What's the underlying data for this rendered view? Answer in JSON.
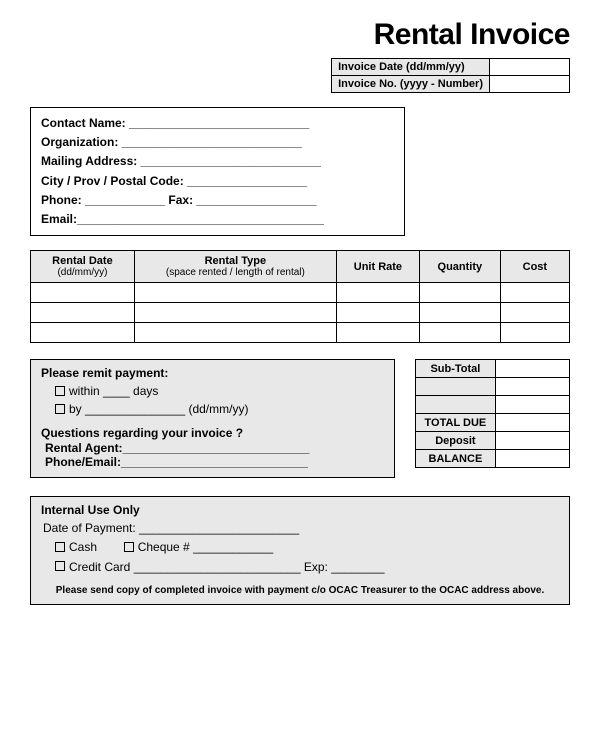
{
  "title": "Rental Invoice",
  "meta": {
    "date_label": "Invoice Date (dd/mm/yy)",
    "date_value": "",
    "no_label": "Invoice No. (yyyy - Number)",
    "no_value": ""
  },
  "contact": {
    "name": "Contact Name:  ___________________________",
    "org": "Organization:  ___________________________",
    "mail": "Mailing Address: ___________________________",
    "city": "City / Prov / Postal Code:  __________________",
    "phone_fax": "Phone:  ____________  Fax: __________________",
    "email": "Email:_____________________________________"
  },
  "items": {
    "columns": [
      {
        "label": "Rental Date",
        "sub": "(dd/mm/yy)"
      },
      {
        "label": "Rental Type",
        "sub": "(space rented / length of rental)"
      },
      {
        "label": "Unit Rate",
        "sub": ""
      },
      {
        "label": "Quantity",
        "sub": ""
      },
      {
        "label": "Cost",
        "sub": ""
      }
    ],
    "row_count": 3
  },
  "remit": {
    "header": "Please remit payment:",
    "opt1": "within ____ days",
    "opt2": "by  _______________  (dd/mm/yy)",
    "q_header": "Questions regarding your invoice ?",
    "agent": "Rental Agent:____________________________",
    "phone_email": "Phone/Email:____________________________"
  },
  "totals": {
    "rows": [
      {
        "label": "Sub-Total",
        "value": ""
      },
      {
        "label": "",
        "value": ""
      },
      {
        "label": "",
        "value": ""
      },
      {
        "label": "TOTAL DUE",
        "value": ""
      },
      {
        "label": "Deposit",
        "value": ""
      },
      {
        "label": "BALANCE",
        "value": ""
      }
    ]
  },
  "internal": {
    "header": "Internal Use Only",
    "date": "Date of Payment:  ________________________",
    "cash": "Cash",
    "cheque": "Cheque #  ____________",
    "credit": "Credit Card  _________________________   Exp:  ________",
    "footer": "Please send copy of completed invoice with payment c/o  OCAC Treasurer to the OCAC address above."
  },
  "colors": {
    "border": "#000000",
    "fill": "#e8e8e8",
    "background": "#ffffff",
    "text": "#000000"
  }
}
